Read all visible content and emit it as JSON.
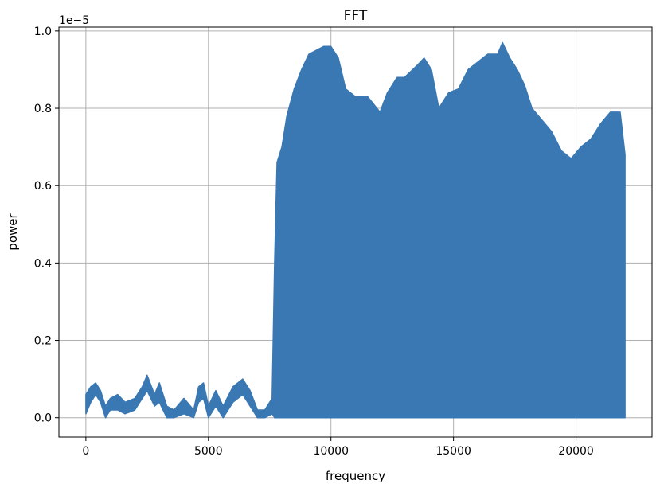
{
  "chart_data": {
    "type": "line",
    "title": "FFT",
    "xlabel": "frequency",
    "ylabel": "power",
    "y_offset_label": "1e−5",
    "xlim": [
      -1100,
      23100
    ],
    "ylim": [
      -0.05,
      1.01
    ],
    "x_ticks": [
      0,
      5000,
      10000,
      15000,
      20000
    ],
    "x_tick_labels": [
      "0",
      "5000",
      "10000",
      "15000",
      "20000"
    ],
    "y_ticks": [
      0.0,
      0.2,
      0.4,
      0.6,
      0.8,
      1.0
    ],
    "y_tick_labels": [
      "0.0",
      "0.2",
      "0.4",
      "0.6",
      "0.8",
      "1.0"
    ],
    "grid": true,
    "color": "#3a78b3",
    "series": [
      {
        "upper_envelope": {
          "x": [
            0,
            200,
            400,
            600,
            800,
            1000,
            1300,
            1600,
            2000,
            2300,
            2500,
            2800,
            3000,
            3300,
            3600,
            4000,
            4400,
            4600,
            4800,
            5000,
            5300,
            5600,
            6000,
            6400,
            6700,
            7000,
            7300,
            7600,
            7700,
            7800,
            8000,
            8200,
            8500,
            8800,
            9100,
            9400,
            9700,
            10000,
            10300,
            10600,
            11000,
            11500,
            12000,
            12300,
            12700,
            13000,
            13500,
            13800,
            14100,
            14400,
            14800,
            15200,
            15600,
            16000,
            16400,
            16800,
            17000,
            17300,
            17600,
            17900,
            18200,
            18600,
            19000,
            19400,
            19800,
            20200,
            20600,
            21000,
            21400,
            21800,
            22000
          ],
          "y": [
            0.06,
            0.08,
            0.09,
            0.07,
            0.03,
            0.05,
            0.06,
            0.04,
            0.05,
            0.08,
            0.11,
            0.06,
            0.09,
            0.03,
            0.02,
            0.05,
            0.02,
            0.08,
            0.09,
            0.03,
            0.07,
            0.03,
            0.08,
            0.1,
            0.07,
            0.02,
            0.02,
            0.05,
            0.4,
            0.66,
            0.7,
            0.78,
            0.85,
            0.9,
            0.94,
            0.95,
            0.96,
            0.96,
            0.93,
            0.85,
            0.83,
            0.83,
            0.79,
            0.84,
            0.88,
            0.88,
            0.91,
            0.93,
            0.9,
            0.8,
            0.84,
            0.85,
            0.9,
            0.92,
            0.94,
            0.94,
            0.97,
            0.93,
            0.9,
            0.86,
            0.8,
            0.77,
            0.74,
            0.69,
            0.67,
            0.7,
            0.72,
            0.76,
            0.79,
            0.79,
            0.68
          ]
        },
        "lower_envelope": {
          "x": [
            0,
            200,
            400,
            600,
            800,
            1000,
            1300,
            1600,
            2000,
            2300,
            2500,
            2800,
            3000,
            3300,
            3600,
            4000,
            4400,
            4600,
            4800,
            5000,
            5300,
            5600,
            6000,
            6400,
            6700,
            7000,
            7300,
            7600,
            7700,
            7800,
            22000
          ],
          "y": [
            0.01,
            0.04,
            0.06,
            0.04,
            0.0,
            0.02,
            0.02,
            0.01,
            0.02,
            0.05,
            0.07,
            0.03,
            0.04,
            0.0,
            0.0,
            0.01,
            0.0,
            0.04,
            0.05,
            0.0,
            0.03,
            0.0,
            0.04,
            0.06,
            0.03,
            0.0,
            0.0,
            0.01,
            0.0,
            0.0,
            0.0
          ]
        }
      }
    ]
  }
}
